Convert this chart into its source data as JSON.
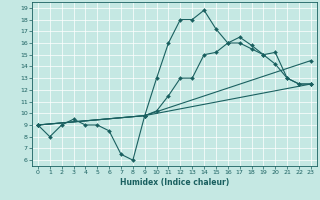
{
  "xlabel": "Humidex (Indice chaleur)",
  "bg_color": "#c5e8e3",
  "line_color": "#1a6060",
  "grid_color": "#ffffff",
  "xlim": [
    -0.5,
    23.5
  ],
  "ylim": [
    5.5,
    19.5
  ],
  "xticks": [
    0,
    1,
    2,
    3,
    4,
    5,
    6,
    7,
    8,
    9,
    10,
    11,
    12,
    13,
    14,
    15,
    16,
    17,
    18,
    19,
    20,
    21,
    22,
    23
  ],
  "yticks": [
    6,
    7,
    8,
    9,
    10,
    11,
    12,
    13,
    14,
    15,
    16,
    17,
    18,
    19
  ],
  "lines": [
    {
      "x": [
        0,
        1,
        2,
        3,
        4,
        5,
        6,
        7,
        8,
        9,
        10,
        11,
        12,
        13,
        14,
        15,
        16,
        17,
        18,
        19,
        20,
        21,
        22,
        23
      ],
      "y": [
        9,
        8,
        9,
        9.5,
        9,
        9,
        8.5,
        6.5,
        6,
        9.8,
        13,
        16,
        18,
        18,
        18.8,
        17.2,
        16,
        16,
        15.5,
        15,
        14.2,
        13,
        12.5,
        12.5
      ]
    },
    {
      "x": [
        0,
        9,
        10,
        11,
        12,
        13,
        14,
        15,
        16,
        17,
        18,
        19,
        20,
        21,
        22,
        23
      ],
      "y": [
        9,
        9.8,
        10.2,
        11.5,
        13,
        13,
        15,
        15.2,
        16,
        16.5,
        15.8,
        15,
        15.2,
        13,
        12.5,
        12.5
      ]
    },
    {
      "x": [
        0,
        9,
        23
      ],
      "y": [
        9,
        9.8,
        12.5
      ]
    },
    {
      "x": [
        0,
        9,
        23
      ],
      "y": [
        9,
        9.8,
        14.5
      ]
    }
  ]
}
